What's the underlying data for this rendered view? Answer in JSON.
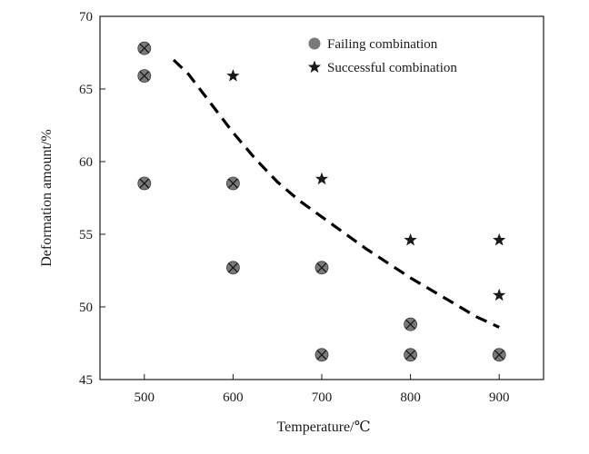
{
  "chart_data": {
    "type": "scatter",
    "title": "",
    "xlabel": "Temperature/℃",
    "ylabel": "Deformation amount/%",
    "xlim": [
      450,
      950
    ],
    "ylim": [
      45,
      70
    ],
    "xticks": [
      500,
      600,
      700,
      800,
      900
    ],
    "yticks": [
      45,
      50,
      55,
      60,
      65,
      70
    ],
    "grid": false,
    "legend": {
      "position": "top-right"
    },
    "series": [
      {
        "name": "Failing combination",
        "marker": "circle-x",
        "color": "#7a7a7a",
        "points": [
          [
            500,
            67.8
          ],
          [
            500,
            65.9
          ],
          [
            500,
            58.5
          ],
          [
            600,
            58.5
          ],
          [
            600,
            52.7
          ],
          [
            700,
            52.7
          ],
          [
            700,
            46.7
          ],
          [
            800,
            48.8
          ],
          [
            800,
            46.7
          ],
          [
            900,
            46.7
          ]
        ]
      },
      {
        "name": "Successful combination",
        "marker": "star",
        "color": "#1a1a1a",
        "points": [
          [
            600,
            65.9
          ],
          [
            700,
            58.8
          ],
          [
            800,
            54.6
          ],
          [
            900,
            54.6
          ],
          [
            900,
            50.8
          ]
        ]
      }
    ],
    "boundary_curve": {
      "style": "dashed",
      "color": "#000000",
      "points": [
        [
          533,
          67.0
        ],
        [
          550,
          66.0
        ],
        [
          575,
          64.0
        ],
        [
          600,
          62.0
        ],
        [
          625,
          60.2
        ],
        [
          650,
          58.6
        ],
        [
          675,
          57.3
        ],
        [
          700,
          56.2
        ],
        [
          725,
          55.1
        ],
        [
          750,
          54.0
        ],
        [
          775,
          53.0
        ],
        [
          800,
          52.0
        ],
        [
          825,
          51.1
        ],
        [
          850,
          50.2
        ],
        [
          875,
          49.3
        ],
        [
          900,
          48.6
        ]
      ]
    }
  }
}
